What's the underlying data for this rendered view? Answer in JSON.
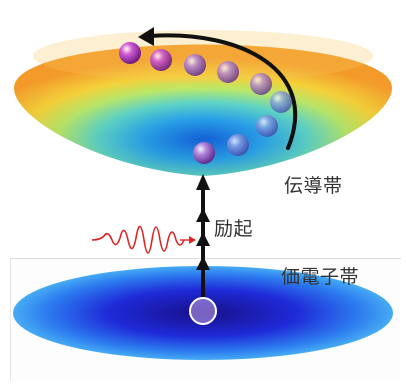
{
  "labels": {
    "conduction_band": "伝導帯",
    "excitation": "励起",
    "valence_band": "価電子帯"
  },
  "colors": {
    "conduction_band_rim": "#f5a623",
    "conduction_band_center": "#1a6ee8",
    "valence_band": "#1a20c8",
    "electron": "#9a5cc8",
    "arrow": "#111111",
    "light_wave": "#e02424",
    "hole": "#c9a6e6"
  },
  "icons": {
    "light_wave": "light-wave-icon",
    "electron": "electron-sphere",
    "hole": "hole-circle"
  }
}
